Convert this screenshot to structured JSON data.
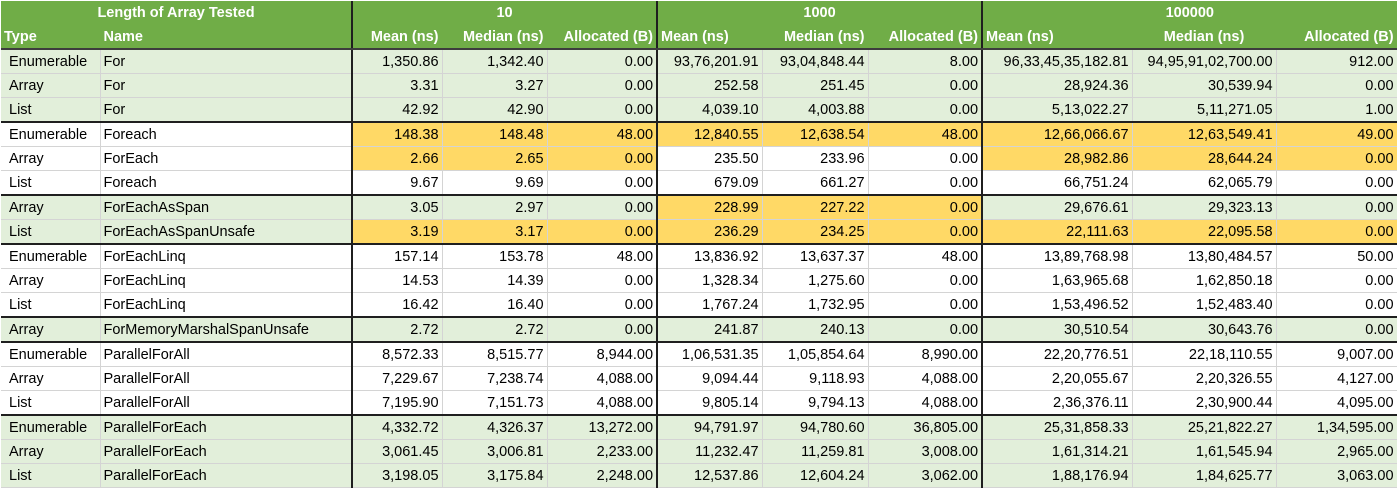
{
  "header": {
    "group_label": "Length of Array Tested",
    "sizes": [
      "10",
      "1000",
      "100000"
    ],
    "type_label": "Type",
    "name_label": "Name",
    "metric_labels": [
      [
        "Mean (ns)",
        "Median (ns)",
        "Allocated (B)"
      ],
      [
        "Mean  (ns)",
        "Median  (ns)",
        "Allocated  (B)"
      ],
      [
        "Mean   (ns)",
        "Median   (ns)",
        "Allocated   (B)"
      ]
    ]
  },
  "colors": {
    "header_green": "#70ad47",
    "band_green": "#e2efda",
    "highlight": "#ffd966"
  },
  "rows": [
    {
      "type": "Enumerable",
      "name": "For",
      "cells": [
        "1,350.86",
        "1,342.40",
        "0.00",
        "93,76,201.91",
        "93,04,848.44",
        "8.00",
        "96,33,45,35,182.81",
        "94,95,91,02,700.00",
        "912.00"
      ],
      "hl": [],
      "green": true,
      "top": true
    },
    {
      "type": "Array",
      "name": "For",
      "cells": [
        "3.31",
        "3.27",
        "0.00",
        "252.58",
        "251.45",
        "0.00",
        "28,924.36",
        "30,539.94",
        "0.00"
      ],
      "hl": [],
      "green": true,
      "top": false
    },
    {
      "type": "List",
      "name": "For",
      "cells": [
        "42.92",
        "42.90",
        "0.00",
        "4,039.10",
        "4,003.88",
        "0.00",
        "5,13,022.27",
        "5,11,271.05",
        "1.00"
      ],
      "hl": [],
      "green": true,
      "top": false
    },
    {
      "type": "Enumerable",
      "name": "Foreach",
      "cells": [
        "148.38",
        "148.48",
        "48.00",
        "12,840.55",
        "12,638.54",
        "48.00",
        "12,66,066.67",
        "12,63,549.41",
        "49.00"
      ],
      "hl": [
        0,
        1,
        2,
        3,
        4,
        5,
        6,
        7,
        8
      ],
      "green": false,
      "top": true
    },
    {
      "type": "Array",
      "name": "ForEach",
      "cells": [
        "2.66",
        "2.65",
        "0.00",
        "235.50",
        "233.96",
        "0.00",
        "28,982.86",
        "28,644.24",
        "0.00"
      ],
      "hl": [
        0,
        1,
        2,
        6,
        7,
        8
      ],
      "green": false,
      "top": false
    },
    {
      "type": "List",
      "name": "Foreach",
      "cells": [
        "9.67",
        "9.69",
        "0.00",
        "679.09",
        "661.27",
        "0.00",
        "66,751.24",
        "62,065.79",
        "0.00"
      ],
      "hl": [],
      "green": false,
      "top": false
    },
    {
      "type": "Array",
      "name": "ForEachAsSpan",
      "cells": [
        "3.05",
        "2.97",
        "0.00",
        "228.99",
        "227.22",
        "0.00",
        "29,676.61",
        "29,323.13",
        "0.00"
      ],
      "hl": [
        3,
        4,
        5
      ],
      "green": true,
      "top": true
    },
    {
      "type": "List",
      "name": "ForEachAsSpanUnsafe",
      "cells": [
        "3.19",
        "3.17",
        "0.00",
        "236.29",
        "234.25",
        "0.00",
        "22,111.63",
        "22,095.58",
        "0.00"
      ],
      "hl": [
        0,
        1,
        2,
        3,
        4,
        5,
        6,
        7,
        8
      ],
      "green": true,
      "top": false
    },
    {
      "type": "Enumerable",
      "name": "ForEachLinq",
      "cells": [
        "157.14",
        "153.78",
        "48.00",
        "13,836.92",
        "13,637.37",
        "48.00",
        "13,89,768.98",
        "13,80,484.57",
        "50.00"
      ],
      "hl": [],
      "green": false,
      "top": true
    },
    {
      "type": "Array",
      "name": "ForEachLinq",
      "cells": [
        "14.53",
        "14.39",
        "0.00",
        "1,328.34",
        "1,275.60",
        "0.00",
        "1,63,965.68",
        "1,62,850.18",
        "0.00"
      ],
      "hl": [],
      "green": false,
      "top": false
    },
    {
      "type": "List",
      "name": "ForEachLinq",
      "cells": [
        "16.42",
        "16.40",
        "0.00",
        "1,767.24",
        "1,732.95",
        "0.00",
        "1,53,496.52",
        "1,52,483.40",
        "0.00"
      ],
      "hl": [],
      "green": false,
      "top": false
    },
    {
      "type": "Array",
      "name": "ForMemoryMarshalSpanUnsafe",
      "cells": [
        "2.72",
        "2.72",
        "0.00",
        "241.87",
        "240.13",
        "0.00",
        "30,510.54",
        "30,643.76",
        "0.00"
      ],
      "hl": [],
      "green": true,
      "top": true
    },
    {
      "type": "Enumerable",
      "name": "ParallelForAll",
      "cells": [
        "8,572.33",
        "8,515.77",
        "8,944.00",
        "1,06,531.35",
        "1,05,854.64",
        "8,990.00",
        "22,20,776.51",
        "22,18,110.55",
        "9,007.00"
      ],
      "hl": [],
      "green": false,
      "top": true
    },
    {
      "type": "Array",
      "name": "ParallelForAll",
      "cells": [
        "7,229.67",
        "7,238.74",
        "4,088.00",
        "9,094.44",
        "9,118.93",
        "4,088.00",
        "2,20,055.67",
        "2,20,326.55",
        "4,127.00"
      ],
      "hl": [],
      "green": false,
      "top": false
    },
    {
      "type": "List",
      "name": "ParallelForAll",
      "cells": [
        "7,195.90",
        "7,151.73",
        "4,088.00",
        "9,805.14",
        "9,794.13",
        "4,088.00",
        "2,36,376.11",
        "2,30,900.44",
        "4,095.00"
      ],
      "hl": [],
      "green": false,
      "top": false
    },
    {
      "type": "Enumerable",
      "name": "ParallelForEach",
      "cells": [
        "4,332.72",
        "4,326.37",
        "13,272.00",
        "94,791.97",
        "94,780.60",
        "36,805.00",
        "25,31,858.33",
        "25,21,822.27",
        "1,34,595.00"
      ],
      "hl": [],
      "green": true,
      "top": true
    },
    {
      "type": "Array",
      "name": "ParallelForEach",
      "cells": [
        "3,061.45",
        "3,006.81",
        "2,233.00",
        "11,232.47",
        "11,259.81",
        "3,008.00",
        "1,61,314.21",
        "1,61,545.94",
        "2,965.00"
      ],
      "hl": [],
      "green": true,
      "top": false
    },
    {
      "type": "List",
      "name": "ParallelForEach",
      "cells": [
        "3,198.05",
        "3,175.84",
        "2,248.00",
        "12,537.86",
        "12,604.24",
        "3,062.00",
        "1,88,176.94",
        "1,84,625.77",
        "3,063.00"
      ],
      "hl": [],
      "green": true,
      "top": false
    }
  ]
}
